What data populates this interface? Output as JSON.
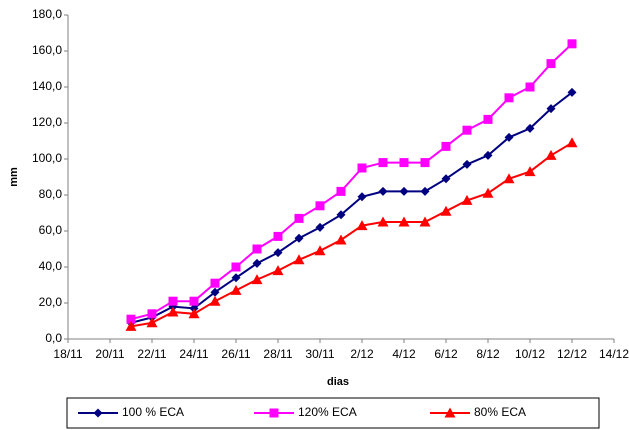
{
  "chart_data": {
    "type": "line",
    "x_label": "dias",
    "y_label": "mm",
    "x": [
      "21/11",
      "22/11",
      "23/11",
      "24/11",
      "25/11",
      "26/11",
      "27/11",
      "28/11",
      "29/11",
      "30/11",
      "1/12",
      "2/12",
      "3/12",
      "4/12",
      "5/12",
      "6/12",
      "7/12",
      "8/12",
      "9/12",
      "10/12",
      "11/12",
      "12/12"
    ],
    "xlim": [
      "18/11",
      "14/12"
    ],
    "xticks": [
      "18/11",
      "20/11",
      "22/11",
      "24/11",
      "26/11",
      "28/11",
      "30/11",
      "2/12",
      "4/12",
      "6/12",
      "8/12",
      "10/12",
      "12/12",
      "14/12"
    ],
    "ylim": [
      0,
      180
    ],
    "yticks": [
      {
        "value": 0,
        "label": "0,0"
      },
      {
        "value": 20,
        "label": "20,0"
      },
      {
        "value": 40,
        "label": "40,0"
      },
      {
        "value": 60,
        "label": "60,0"
      },
      {
        "value": 80,
        "label": "80,0"
      },
      {
        "value": 100,
        "label": "100,0"
      },
      {
        "value": 120,
        "label": "120,0"
      },
      {
        "value": 140,
        "label": "140,0"
      },
      {
        "value": 160,
        "label": "160,0"
      },
      {
        "value": 180,
        "label": "180,0"
      }
    ],
    "series": [
      {
        "name": "100 % ECA",
        "color": "#000080",
        "marker": "diamond",
        "values": [
          9,
          12,
          18,
          17,
          26,
          34,
          42,
          48,
          56,
          62,
          69,
          79,
          82,
          82,
          82,
          89,
          97,
          102,
          112,
          117,
          128,
          137
        ]
      },
      {
        "name": "120% ECA",
        "color": "#ff00ff",
        "marker": "square",
        "values": [
          11,
          14,
          21,
          21,
          31,
          40,
          50,
          57,
          67,
          74,
          82,
          95,
          98,
          98,
          98,
          107,
          116,
          122,
          134,
          140,
          153,
          164
        ]
      },
      {
        "name": "80% ECA",
        "color": "#ff0000",
        "marker": "triangle",
        "values": [
          7,
          9,
          15,
          14,
          21,
          27,
          33,
          38,
          44,
          49,
          55,
          63,
          65,
          65,
          65,
          71,
          77,
          81,
          89,
          93,
          102,
          109
        ]
      }
    ]
  }
}
